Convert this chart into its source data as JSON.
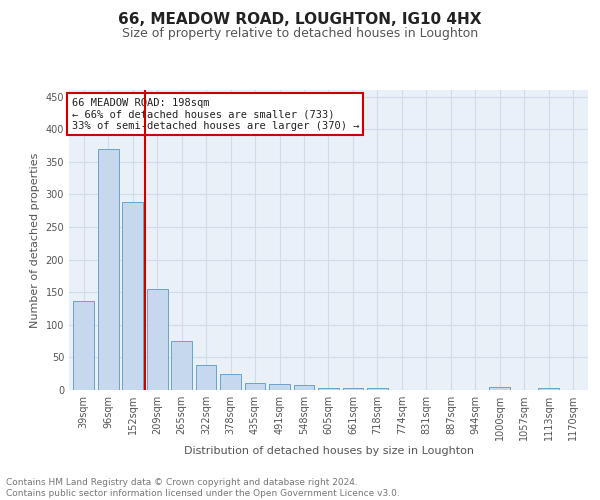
{
  "title": "66, MEADOW ROAD, LOUGHTON, IG10 4HX",
  "subtitle": "Size of property relative to detached houses in Loughton",
  "xlabel": "Distribution of detached houses by size in Loughton",
  "ylabel": "Number of detached properties",
  "categories": [
    "39sqm",
    "96sqm",
    "152sqm",
    "209sqm",
    "265sqm",
    "322sqm",
    "378sqm",
    "435sqm",
    "491sqm",
    "548sqm",
    "605sqm",
    "661sqm",
    "718sqm",
    "774sqm",
    "831sqm",
    "887sqm",
    "944sqm",
    "1000sqm",
    "1057sqm",
    "1113sqm",
    "1170sqm"
  ],
  "values": [
    136,
    370,
    289,
    155,
    75,
    38,
    25,
    11,
    9,
    8,
    3,
    3,
    3,
    0,
    0,
    0,
    0,
    5,
    0,
    3,
    0
  ],
  "bar_color": "#c5d8ed",
  "bar_edge_color": "#6aa3cd",
  "vline_x_index": 3,
  "vline_color": "#cc0000",
  "annotation_box_text": "66 MEADOW ROAD: 198sqm\n← 66% of detached houses are smaller (733)\n33% of semi-detached houses are larger (370) →",
  "annotation_box_color": "#cc0000",
  "ylim": [
    0,
    460
  ],
  "yticks": [
    0,
    50,
    100,
    150,
    200,
    250,
    300,
    350,
    400,
    450
  ],
  "grid_color": "#d0dce8",
  "background_color": "#eaf0f8",
  "footer_text": "Contains HM Land Registry data © Crown copyright and database right 2024.\nContains public sector information licensed under the Open Government Licence v3.0.",
  "title_fontsize": 11,
  "subtitle_fontsize": 9,
  "axis_label_fontsize": 8,
  "tick_fontsize": 7,
  "annotation_fontsize": 7.5,
  "footer_fontsize": 6.5
}
